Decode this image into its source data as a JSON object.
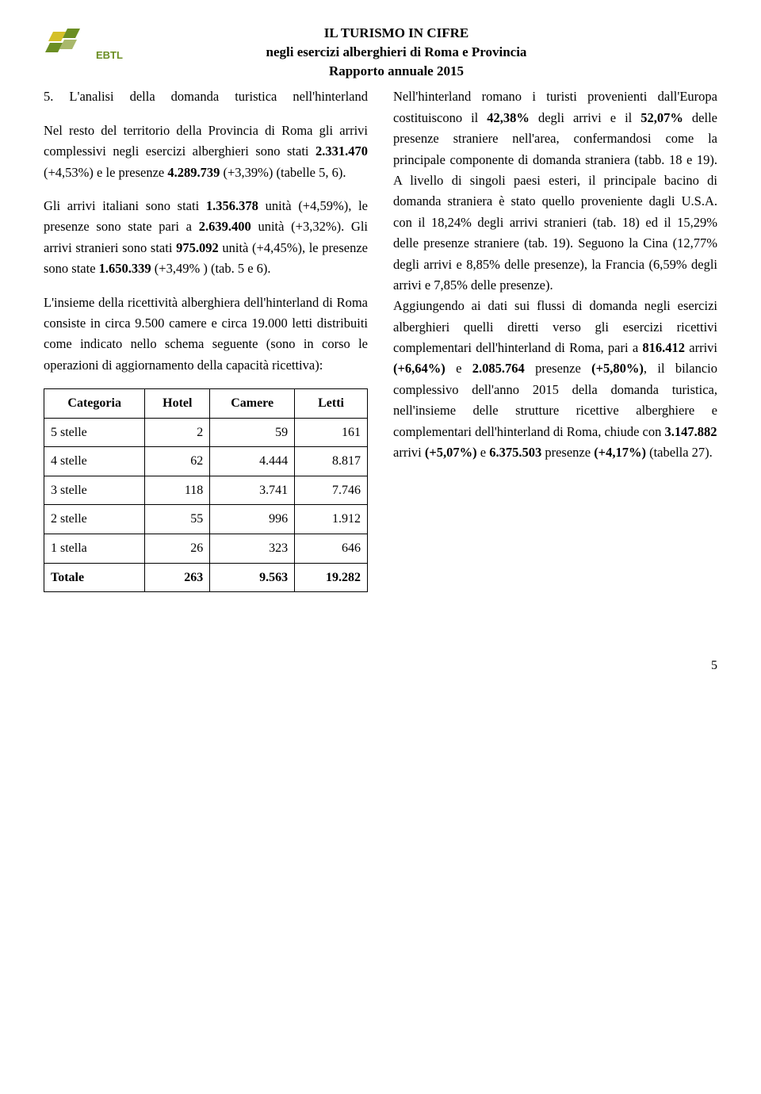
{
  "header": {
    "logo_text": "EBTL",
    "title1": "IL TURISMO IN CIFRE",
    "title2": "negli esercizi alberghieri di Roma e Provincia",
    "title3": "Rapporto annuale 2015"
  },
  "left": {
    "p1_a": "5. L'analisi della domanda turistica nell'hinterland",
    "p2_a": "Nel resto del territorio della Provincia di Roma gli arrivi complessivi negli esercizi alberghieri sono stati ",
    "p2_b": "2.331.470",
    "p2_c": " (+4,53%) e le presenze ",
    "p2_d": "4.289.739",
    "p2_e": " (+3,39%) (tabelle 5, 6).",
    "p3_a": "Gli arrivi italiani sono stati ",
    "p3_b": "1.356.378",
    "p3_c": " unità (+4,59%), le presenze sono state pari a ",
    "p3_d": "2.639.400",
    "p3_e": " unità (+3,32%). Gli arrivi stranieri sono stati ",
    "p3_f": "975.092",
    "p3_g": " unità (+4,45%), le presenze sono state ",
    "p3_h": "1.650.339",
    "p3_i": " (+3,49% ) (tab. 5 e 6).",
    "p4_a": "L'insieme della ricettività alberghiera dell'hinterland di Roma consiste in circa 9.500 camere e circa 19.000 letti distribuiti come indicato nello schema seguente (sono in corso le operazioni di aggiornamento della capacità ricettiva):"
  },
  "table": {
    "headers": [
      "Categoria",
      "Hotel",
      "Camere",
      "Letti"
    ],
    "rows": [
      [
        "5 stelle",
        "2",
        "59",
        "161"
      ],
      [
        "4 stelle",
        "62",
        "4.444",
        "8.817"
      ],
      [
        "3 stelle",
        "118",
        "3.741",
        "7.746"
      ],
      [
        "2 stelle",
        "55",
        "996",
        "1.912"
      ],
      [
        "1 stella",
        "26",
        "323",
        "646"
      ]
    ],
    "total": [
      "Totale",
      "263",
      "9.563",
      "19.282"
    ]
  },
  "right": {
    "p1_a": "Nell'hinterland romano i turisti provenienti dall'Europa costituiscono il ",
    "p1_b": "42,38%",
    "p1_c": " degli arrivi e il ",
    "p1_d": "52,07%",
    "p1_e": " delle presenze straniere nell'area, confermandosi come la principale componente di domanda straniera (tabb. 18 e 19). A livello di singoli paesi esteri, il principale bacino di domanda straniera è stato quello proveniente dagli U.S.A. con il 18,24% degli arrivi stranieri (tab. 18) ed il 15,29% delle presenze straniere (tab. 19). Seguono la Cina (12,77% degli arrivi e 8,85% delle presenze), la Francia (6,59% degli arrivi e 7,85% delle presenze).",
    "p2_a": "Aggiungendo ai dati sui flussi di domanda negli esercizi alberghieri quelli diretti verso gli esercizi ricettivi complementari dell'hinterland di Roma, pari a ",
    "p2_b": "816.412",
    "p2_c": " arrivi ",
    "p2_d": "(+6,64%)",
    "p2_e": " e ",
    "p2_f": "2.085.764",
    "p2_g": " presenze ",
    "p2_h": "(+5,80%)",
    "p2_i": ", il bilancio complessivo dell'anno 2015 della domanda turistica, nell'insieme delle strutture ricettive alberghiere e complementari dell'hinterland di Roma, chiude con ",
    "p2_j": "3.147.882",
    "p3_a": "arrivi ",
    "p3_b": "(+5,07%)",
    "p3_c": " e ",
    "p3_d": "6.375.503",
    "p3_e": " presenze ",
    "p3_f": "(+4,17%)",
    "p3_g": " (tabella 27)."
  },
  "page_number": "5",
  "colors": {
    "text": "#000000",
    "background": "#ffffff",
    "logo_green": "#6b8e23",
    "logo_yellow": "#d4c029"
  }
}
